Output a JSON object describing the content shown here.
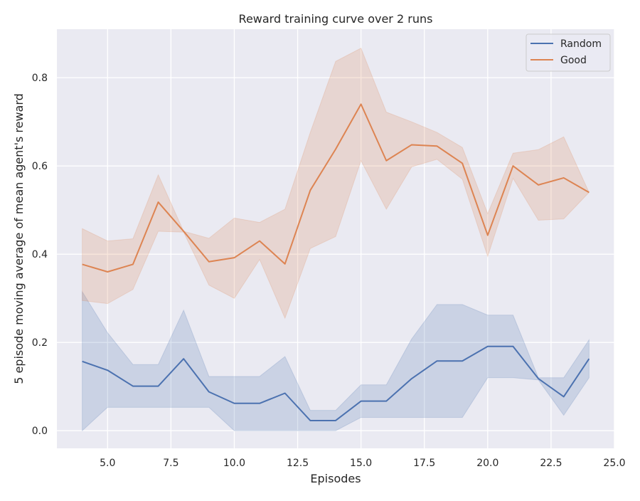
{
  "chart_data": {
    "type": "line",
    "title": "Reward training curve over 2 runs",
    "xlabel": "Episodes",
    "ylabel": "5 episode moving average of mean agent's reward",
    "xlim": [
      3.0,
      25.0
    ],
    "ylim": [
      -0.04,
      0.91
    ],
    "x_ticks": [
      5.0,
      7.5,
      10.0,
      12.5,
      15.0,
      17.5,
      20.0,
      22.5,
      25.0
    ],
    "x_tick_labels": [
      "5.0",
      "7.5",
      "10.0",
      "12.5",
      "15.0",
      "17.5",
      "20.0",
      "22.5",
      "25.0"
    ],
    "y_ticks": [
      0.0,
      0.2,
      0.4,
      0.6,
      0.8
    ],
    "y_tick_labels": [
      "0.0",
      "0.2",
      "0.4",
      "0.6",
      "0.8"
    ],
    "grid": true,
    "background": "#eaeaf2",
    "legend_position": "top-right",
    "x": [
      4,
      5,
      6,
      7,
      8,
      9,
      10,
      11,
      12,
      13,
      14,
      15,
      16,
      17,
      18,
      19,
      20,
      21,
      22,
      23,
      24
    ],
    "series": [
      {
        "name": "Random",
        "color": "#4c72b0",
        "values": [
          0.157,
          0.137,
          0.101,
          0.101,
          0.163,
          0.088,
          0.062,
          0.062,
          0.085,
          0.023,
          0.023,
          0.067,
          0.067,
          0.118,
          0.158,
          0.158,
          0.191,
          0.191,
          0.118,
          0.077,
          0.163
        ],
        "lower": [
          0.0,
          0.053,
          0.053,
          0.053,
          0.053,
          0.053,
          0.0,
          0.0,
          0.0,
          0.0,
          0.0,
          0.03,
          0.03,
          0.03,
          0.03,
          0.03,
          0.12,
          0.12,
          0.115,
          0.035,
          0.12
        ],
        "upper": [
          0.315,
          0.222,
          0.15,
          0.15,
          0.273,
          0.123,
          0.123,
          0.123,
          0.168,
          0.046,
          0.046,
          0.104,
          0.104,
          0.208,
          0.286,
          0.286,
          0.262,
          0.262,
          0.12,
          0.12,
          0.206
        ]
      },
      {
        "name": "Good",
        "color": "#dd8452",
        "values": [
          0.377,
          0.36,
          0.377,
          0.518,
          0.452,
          0.383,
          0.392,
          0.43,
          0.378,
          0.545,
          0.638,
          0.74,
          0.612,
          0.648,
          0.645,
          0.606,
          0.443,
          0.6,
          0.557,
          0.573,
          0.54
        ],
        "lower": [
          0.295,
          0.288,
          0.32,
          0.452,
          0.45,
          0.33,
          0.3,
          0.388,
          0.255,
          0.413,
          0.44,
          0.612,
          0.502,
          0.598,
          0.615,
          0.57,
          0.395,
          0.572,
          0.477,
          0.48,
          0.54
        ],
        "upper": [
          0.458,
          0.43,
          0.435,
          0.58,
          0.452,
          0.436,
          0.482,
          0.472,
          0.502,
          0.676,
          0.837,
          0.867,
          0.722,
          0.7,
          0.676,
          0.642,
          0.492,
          0.629,
          0.637,
          0.666,
          0.54
        ]
      }
    ]
  }
}
